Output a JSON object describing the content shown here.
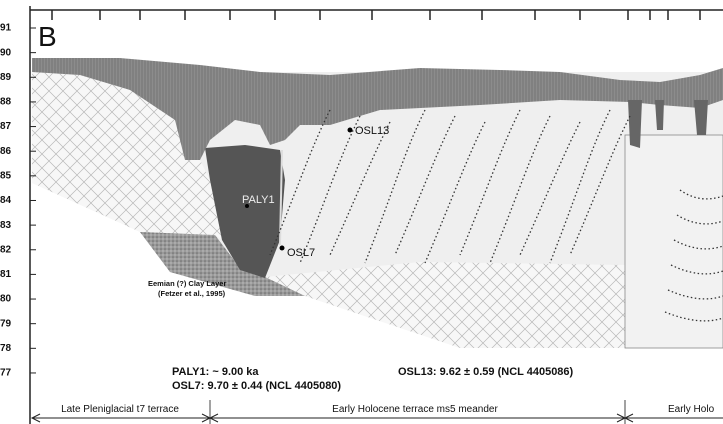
{
  "panel_label": "B",
  "elevation_labels": [
    "91",
    "90",
    "89",
    "88",
    "87",
    "86",
    "85",
    "84",
    "83",
    "82",
    "81",
    "80",
    "79",
    "78",
    "77"
  ],
  "samples": [
    {
      "label": "OSL13"
    },
    {
      "label": "PALY1"
    },
    {
      "label": "OSL7"
    }
  ],
  "clay_layer": {
    "lines": [
      "Eemian (?) Clay Layer",
      "(Fetzer et al., 1995)"
    ]
  },
  "dates": [
    "PALY1: ~ 9.00 ka",
    "OSL7: 9.70 ± 0.44 (NCL 4405080)",
    "OSL13: 9.62 ± 0.59 (NCL 4405086)"
  ],
  "terraces": [
    "Late Pleniglacial t7 terrace",
    "Early Holocene terrace ms5 meander",
    "Early Holo"
  ]
}
